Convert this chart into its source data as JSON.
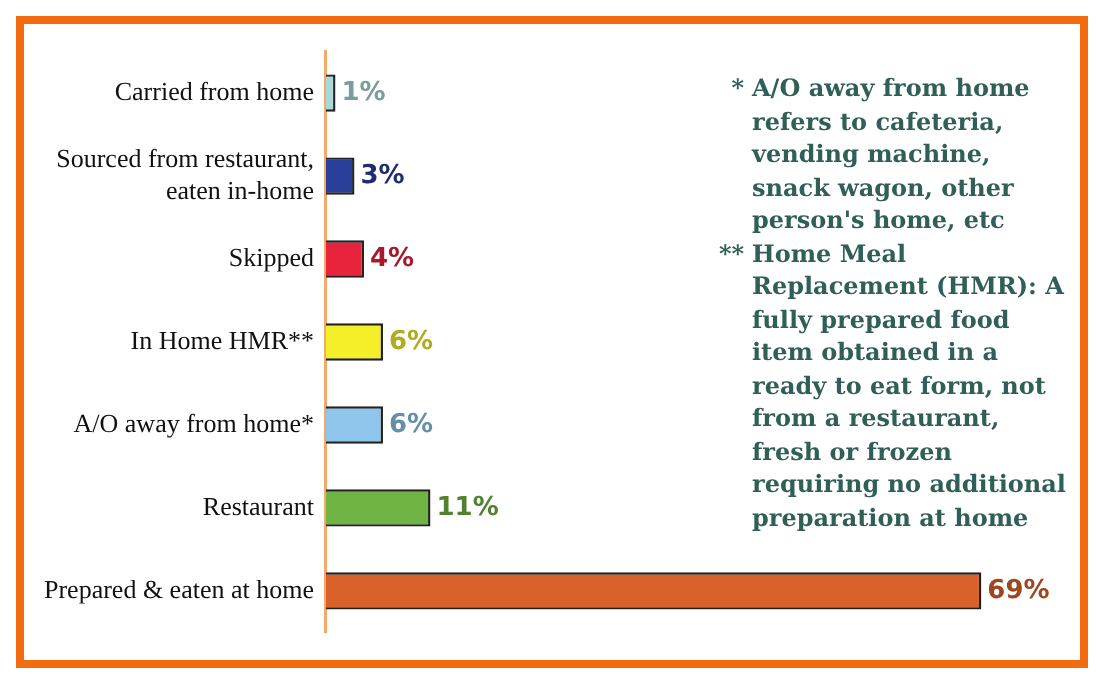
{
  "chart_data": {
    "type": "bar",
    "orientation": "horizontal",
    "categories": [
      "Carried from home",
      "Sourced from restaurant, eaten in-home",
      "Skipped",
      "In Home HMR**",
      "A/O away from home*",
      "Restaurant",
      "Prepared & eaten at home"
    ],
    "values": [
      1,
      3,
      4,
      6,
      6,
      11,
      69
    ],
    "colors": [
      "#a8d8d8",
      "#2a3f9a",
      "#e8243c",
      "#f5ef2a",
      "#8ec5ea",
      "#70b443",
      "#d9622b"
    ],
    "value_labels": [
      "1%",
      "3%",
      "4%",
      "6%",
      "6%",
      "11%",
      "69%"
    ],
    "annotations": [
      "* A/O away from home refers to cafeteria, vending machine, snack wagon, other person's home, etc",
      "** Home Meal Replacement (HMR): A fully prepared food item obtained in a ready to eat form, not from a restaurant, fresh or frozen requiring no additional preparation at home"
    ]
  }
}
